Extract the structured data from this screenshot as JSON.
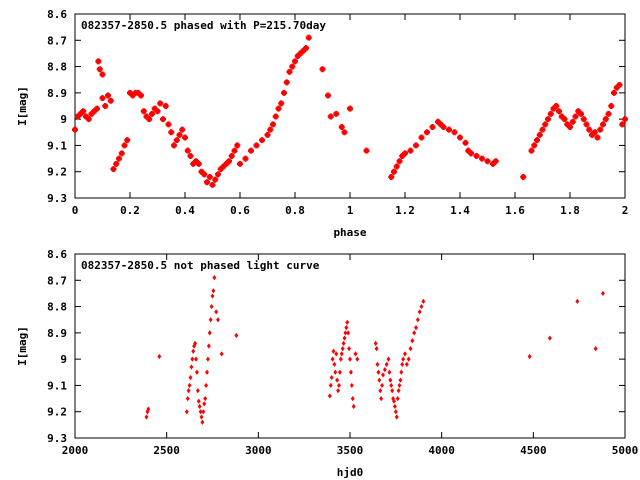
{
  "chart_data": [
    {
      "type": "scatter",
      "title": "082357-2850.5 phased with P=215.70day",
      "xlabel": "phase",
      "ylabel": "I[mag]",
      "xlim": [
        0,
        2
      ],
      "ylim": [
        9.3,
        8.6
      ],
      "y_inverted": true,
      "xticks": [
        "0",
        "0.2",
        "0.4",
        "0.6",
        "0.8",
        "1",
        "1.2",
        "1.4",
        "1.6",
        "1.8",
        "2"
      ],
      "yticks": [
        "8.6",
        "8.7",
        "8.8",
        "8.9",
        "9",
        "9.1",
        "9.2",
        "9.3"
      ],
      "marker_color": "#ff0000",
      "series": [
        {
          "x": [
            0.0,
            0.01,
            0.02,
            0.03,
            0.04,
            0.05,
            0.06,
            0.07,
            0.08,
            0.085,
            0.09,
            0.1,
            0.1,
            0.11,
            0.12,
            0.13,
            0.14,
            0.15,
            0.16,
            0.17,
            0.18,
            0.19,
            0.2,
            0.21,
            0.22,
            0.23,
            0.24,
            0.25,
            0.26,
            0.27,
            0.28,
            0.29,
            0.3,
            0.31,
            0.32,
            0.33,
            0.34,
            0.35,
            0.36,
            0.37,
            0.38,
            0.39,
            0.4,
            0.41,
            0.42,
            0.43,
            0.44,
            0.45,
            0.46,
            0.47,
            0.48,
            0.49,
            0.5,
            0.51,
            0.52,
            0.53,
            0.54,
            0.55,
            0.56,
            0.57,
            0.58,
            0.59,
            0.6,
            0.62,
            0.64,
            0.66,
            0.68,
            0.7,
            0.71,
            0.72,
            0.73,
            0.74,
            0.75,
            0.76,
            0.77,
            0.78,
            0.79,
            0.8,
            0.81,
            0.82,
            0.83,
            0.84,
            0.85,
            0.9,
            0.92,
            0.93,
            0.95,
            0.97,
            0.98,
            1.0,
            1.06,
            1.15,
            1.16,
            1.17,
            1.18,
            1.19,
            1.2,
            1.22,
            1.24,
            1.26,
            1.28,
            1.3,
            1.32,
            1.33,
            1.34,
            1.36,
            1.38,
            1.4,
            1.42,
            1.43,
            1.44,
            1.46,
            1.48,
            1.5,
            1.52,
            1.53,
            1.63,
            1.66,
            1.67,
            1.68,
            1.69,
            1.7,
            1.71,
            1.72,
            1.73,
            1.74,
            1.75,
            1.76,
            1.77,
            1.78,
            1.79,
            1.8,
            1.81,
            1.82,
            1.83,
            1.84,
            1.85,
            1.86,
            1.87,
            1.88,
            1.89,
            1.9,
            1.91,
            1.92,
            1.93,
            1.94,
            1.95,
            1.96,
            1.97,
            1.98,
            1.99,
            2.0
          ],
          "y": [
            9.04,
            8.99,
            8.98,
            8.97,
            8.99,
            9.0,
            8.98,
            8.97,
            8.96,
            8.78,
            8.81,
            8.83,
            8.92,
            8.95,
            8.91,
            8.93,
            9.19,
            9.17,
            9.15,
            9.13,
            9.1,
            9.08,
            8.9,
            8.91,
            8.9,
            8.9,
            8.91,
            8.97,
            8.99,
            9.0,
            8.98,
            8.96,
            8.97,
            8.94,
            9.0,
            8.95,
            9.02,
            9.05,
            9.1,
            9.08,
            9.06,
            9.04,
            9.07,
            9.12,
            9.14,
            9.17,
            9.16,
            9.17,
            9.2,
            9.21,
            9.24,
            9.22,
            9.25,
            9.23,
            9.21,
            9.19,
            9.18,
            9.17,
            9.16,
            9.14,
            9.12,
            9.1,
            9.17,
            9.15,
            9.12,
            9.1,
            9.08,
            9.06,
            9.04,
            9.02,
            8.99,
            8.96,
            8.94,
            8.9,
            8.86,
            8.82,
            8.8,
            8.78,
            8.76,
            8.75,
            8.74,
            8.73,
            8.69,
            8.81,
            8.91,
            8.99,
            8.98,
            9.03,
            9.05,
            8.96,
            9.12,
            9.22,
            9.2,
            9.18,
            9.16,
            9.14,
            9.13,
            9.12,
            9.1,
            9.07,
            9.05,
            9.03,
            9.01,
            9.02,
            9.03,
            9.04,
            9.05,
            9.07,
            9.09,
            9.12,
            9.13,
            9.14,
            9.15,
            9.16,
            9.17,
            9.16,
            9.22,
            9.12,
            9.1,
            9.08,
            9.06,
            9.04,
            9.02,
            9.0,
            8.98,
            8.96,
            8.95,
            8.97,
            8.99,
            9.0,
            9.02,
            9.03,
            9.01,
            8.99,
            8.97,
            8.98,
            9.0,
            9.02,
            9.04,
            9.06,
            9.05,
            9.07,
            9.04,
            9.02,
            9.0,
            8.98,
            8.95,
            8.9,
            8.88,
            8.87,
            9.02,
            9.0
          ],
          "marker": "cross"
        }
      ]
    },
    {
      "type": "scatter",
      "title": "082357-2850.5 not phased light curve",
      "xlabel": "hjd0",
      "ylabel": "I[mag]",
      "xlim": [
        2000,
        5000
      ],
      "ylim": [
        9.3,
        8.6
      ],
      "y_inverted": true,
      "xticks": [
        "2000",
        "2500",
        "3000",
        "3500",
        "4000",
        "4500",
        "5000"
      ],
      "yticks": [
        "8.6",
        "8.7",
        "8.8",
        "8.9",
        "9",
        "9.1",
        "9.2",
        "9.3"
      ],
      "marker_color": "#ff0000",
      "series": [
        {
          "x": [
            2390,
            2395,
            2400,
            2460,
            2610,
            2615,
            2620,
            2625,
            2630,
            2635,
            2640,
            2645,
            2650,
            2655,
            2660,
            2665,
            2670,
            2675,
            2680,
            2685,
            2690,
            2695,
            2700,
            2705,
            2710,
            2715,
            2720,
            2725,
            2730,
            2735,
            2740,
            2745,
            2750,
            2755,
            2760,
            2770,
            2780,
            2800,
            2880,
            3390,
            3395,
            3400,
            3405,
            3410,
            3415,
            3420,
            3425,
            3430,
            3435,
            3440,
            3445,
            3450,
            3455,
            3460,
            3465,
            3470,
            3475,
            3480,
            3485,
            3490,
            3495,
            3500,
            3505,
            3510,
            3515,
            3520,
            3530,
            3540,
            3640,
            3645,
            3650,
            3655,
            3660,
            3665,
            3670,
            3675,
            3680,
            3690,
            3700,
            3710,
            3715,
            3720,
            3725,
            3730,
            3735,
            3740,
            3745,
            3750,
            3755,
            3760,
            3765,
            3770,
            3775,
            3780,
            3785,
            3790,
            3800,
            3810,
            3820,
            3830,
            3840,
            3850,
            3860,
            3870,
            3880,
            3890,
            3900,
            4480,
            4590,
            4740,
            4840,
            4880
          ],
          "y": [
            9.22,
            9.2,
            9.19,
            8.99,
            9.2,
            9.15,
            9.12,
            9.1,
            9.07,
            9.03,
            9.0,
            8.97,
            8.95,
            8.94,
            9.0,
            9.05,
            9.12,
            9.16,
            9.18,
            9.2,
            9.22,
            9.24,
            9.2,
            9.17,
            9.15,
            9.1,
            9.05,
            9.0,
            8.95,
            8.9,
            8.85,
            8.8,
            8.76,
            8.74,
            8.69,
            8.82,
            8.85,
            8.98,
            8.91,
            9.14,
            9.1,
            9.07,
            9.0,
            8.97,
            9.02,
            9.05,
            8.98,
            9.08,
            9.12,
            9.1,
            9.05,
            9.0,
            8.98,
            8.96,
            8.94,
            8.92,
            8.9,
            8.88,
            8.86,
            8.9,
            8.96,
            9.0,
            9.05,
            9.1,
            9.15,
            9.18,
            8.98,
            9.0,
            8.94,
            8.96,
            9.02,
            9.05,
            9.08,
            9.12,
            9.15,
            9.1,
            9.06,
            9.04,
            9.02,
            9.0,
            9.05,
            9.08,
            9.1,
            9.12,
            9.15,
            9.16,
            9.18,
            9.2,
            9.22,
            9.15,
            9.12,
            9.1,
            9.08,
            9.05,
            9.02,
            9.0,
            8.98,
            9.02,
            9.0,
            8.96,
            8.93,
            8.9,
            8.88,
            8.85,
            8.82,
            8.8,
            8.78,
            8.99,
            8.92,
            8.78,
            8.96,
            8.75
          ],
          "marker": "diamond"
        }
      ]
    }
  ]
}
